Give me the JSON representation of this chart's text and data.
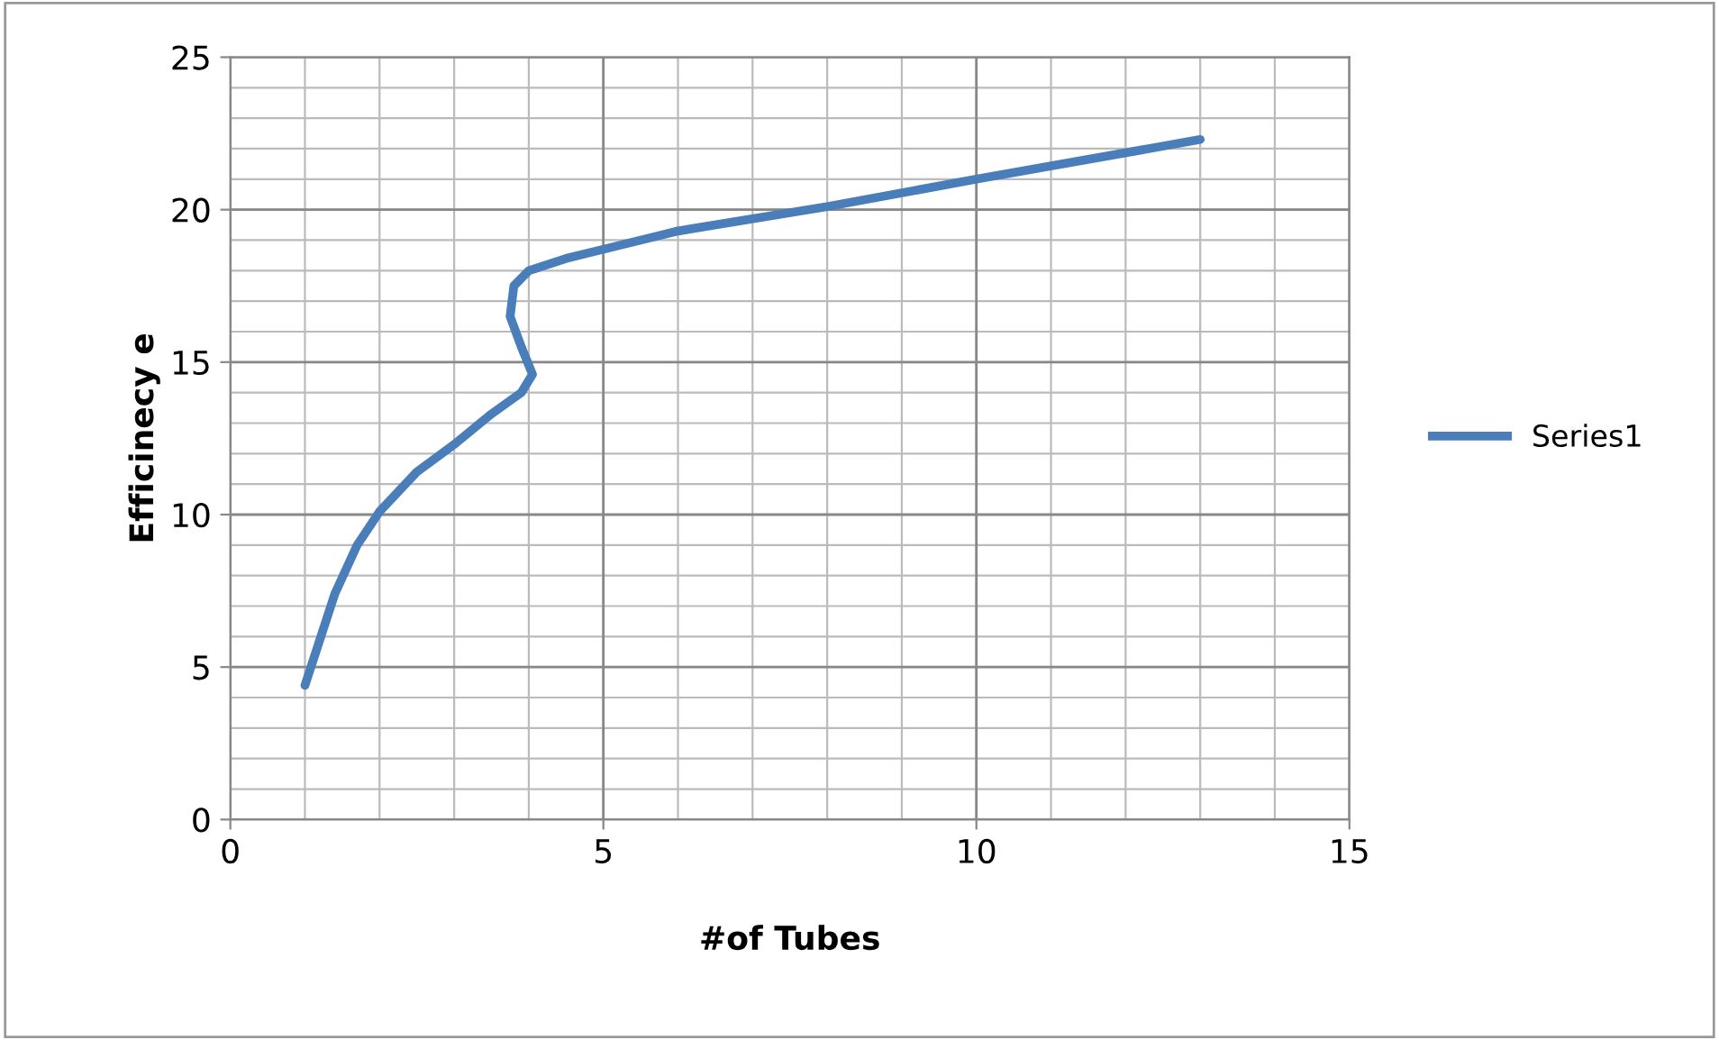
{
  "chart_data": {
    "type": "line",
    "xlabel": "#of Tubes",
    "ylabel": "Efficinecy e",
    "series": [
      {
        "name": "Series1",
        "color": "#4a7ebb",
        "x": [
          1,
          1.4,
          1.7,
          2,
          2.5,
          3,
          3.5,
          3.9,
          4.05,
          3.9,
          3.75,
          3.8,
          4,
          4.5,
          5,
          6,
          8,
          10,
          13
        ],
        "values": [
          4.4,
          7.4,
          9,
          10.1,
          11.4,
          12.3,
          13.3,
          14,
          14.6,
          15.5,
          16.5,
          17.5,
          18,
          18.4,
          18.7,
          19.3,
          20.1,
          21,
          22.3
        ]
      }
    ],
    "xlim": [
      0,
      15
    ],
    "ylim": [
      0,
      25
    ],
    "xticks": [
      0,
      5,
      10,
      15
    ],
    "yticks": [
      0,
      5,
      10,
      15,
      20,
      25
    ],
    "grid": true,
    "legend": "right",
    "marker": "none",
    "line_style": "solid"
  }
}
